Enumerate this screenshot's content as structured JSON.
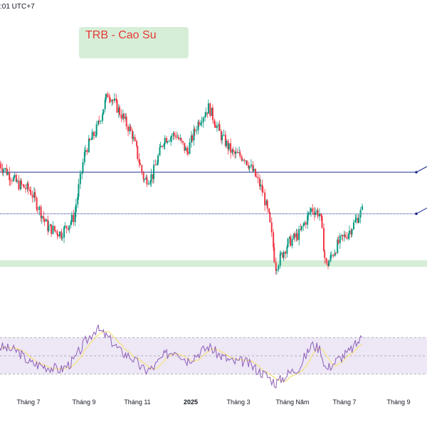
{
  "header": {
    "timestamp": ":01 UTC+7"
  },
  "title_badge": {
    "text": "TRB - Cao Su",
    "bg": "#d6eed8",
    "text_color": "#e53935"
  },
  "colors": {
    "up": "#089981",
    "down": "#f23645",
    "level_line": "#1e2d8f",
    "support_zone": "#d6eed8",
    "rsi_line": "#8e5fb8",
    "rsi_ma": "#f5e27a",
    "rsi_band": "#ede7f6"
  },
  "chart_data": [
    {
      "type": "candlestick",
      "title": "TRB - Cao Su",
      "x_ticks": [
        "Tháng 7",
        "Tháng 9",
        "Tháng 11",
        "2025",
        "Tháng 3",
        "Tháng Năm",
        "Tháng 7",
        "Tháng 9"
      ],
      "x_ticks_bold": [
        "2025"
      ],
      "grid": false,
      "close_series": [
        {
          "x": "2024-05-20",
          "close": 0.52
        },
        {
          "x": "2024-06-10",
          "close": 0.4
        },
        {
          "x": "2024-06-25",
          "close": 0.36
        },
        {
          "x": "2024-07-15",
          "close": 0.14
        },
        {
          "x": "2024-07-31",
          "close": 0.1
        },
        {
          "x": "2024-08-15",
          "close": 0.2
        },
        {
          "x": "2024-08-28",
          "close": 0.6
        },
        {
          "x": "2024-09-10",
          "close": 0.72
        },
        {
          "x": "2024-09-24",
          "close": 0.95
        },
        {
          "x": "2024-10-08",
          "close": 0.83
        },
        {
          "x": "2024-10-22",
          "close": 0.7
        },
        {
          "x": "2024-11-05",
          "close": 0.42
        },
        {
          "x": "2024-11-15",
          "close": 0.45
        },
        {
          "x": "2024-11-28",
          "close": 0.67
        },
        {
          "x": "2024-12-12",
          "close": 0.7
        },
        {
          "x": "2024-12-25",
          "close": 0.59
        },
        {
          "x": "2025-01-08",
          "close": 0.78
        },
        {
          "x": "2025-01-20",
          "close": 0.86
        },
        {
          "x": "2025-02-03",
          "close": 0.69
        },
        {
          "x": "2025-02-17",
          "close": 0.58
        },
        {
          "x": "2025-03-03",
          "close": 0.56
        },
        {
          "x": "2025-03-17",
          "close": 0.43
        },
        {
          "x": "2025-03-24",
          "close": 0.35
        },
        {
          "x": "2025-04-01",
          "close": 0.18
        },
        {
          "x": "2025-04-08",
          "close": -0.1
        },
        {
          "x": "2025-04-22",
          "close": 0.04
        },
        {
          "x": "2025-05-06",
          "close": 0.1
        },
        {
          "x": "2025-05-20",
          "close": 0.25
        },
        {
          "x": "2025-05-30",
          "close": 0.22
        },
        {
          "x": "2025-06-06",
          "close": -0.1
        },
        {
          "x": "2025-06-20",
          "close": 0.04
        },
        {
          "x": "2025-07-04",
          "close": 0.12
        },
        {
          "x": "2025-07-18",
          "close": 0.24
        }
      ],
      "horizontal_levels": [
        0.47,
        0.22
      ],
      "support_zone": [
        -0.06,
        -0.1
      ],
      "rsi": {
        "series": [
          {
            "x": "2024-05-20",
            "value": 60
          },
          {
            "x": "2024-06-10",
            "value": 55
          },
          {
            "x": "2024-06-25",
            "value": 42
          },
          {
            "x": "2024-07-15",
            "value": 38
          },
          {
            "x": "2024-07-31",
            "value": 35
          },
          {
            "x": "2024-08-15",
            "value": 45
          },
          {
            "x": "2024-08-28",
            "value": 65
          },
          {
            "x": "2024-09-10",
            "value": 80
          },
          {
            "x": "2024-09-24",
            "value": 70
          },
          {
            "x": "2024-10-08",
            "value": 55
          },
          {
            "x": "2024-10-22",
            "value": 48
          },
          {
            "x": "2024-11-05",
            "value": 34
          },
          {
            "x": "2024-11-15",
            "value": 36
          },
          {
            "x": "2024-11-28",
            "value": 50
          },
          {
            "x": "2024-12-12",
            "value": 57
          },
          {
            "x": "2024-12-25",
            "value": 45
          },
          {
            "x": "2025-01-08",
            "value": 53
          },
          {
            "x": "2025-01-20",
            "value": 60
          },
          {
            "x": "2025-02-03",
            "value": 50
          },
          {
            "x": "2025-02-17",
            "value": 43
          },
          {
            "x": "2025-03-03",
            "value": 44
          },
          {
            "x": "2025-03-17",
            "value": 35
          },
          {
            "x": "2025-03-24",
            "value": 31
          },
          {
            "x": "2025-04-01",
            "value": 26
          },
          {
            "x": "2025-04-08",
            "value": 20
          },
          {
            "x": "2025-04-22",
            "value": 30
          },
          {
            "x": "2025-05-06",
            "value": 38
          },
          {
            "x": "2025-05-20",
            "value": 62
          },
          {
            "x": "2025-05-30",
            "value": 58
          },
          {
            "x": "2025-06-06",
            "value": 35
          },
          {
            "x": "2025-06-20",
            "value": 46
          },
          {
            "x": "2025-07-04",
            "value": 55
          },
          {
            "x": "2025-07-18",
            "value": 70
          }
        ],
        "band": [
          30,
          70
        ],
        "mid": 50
      }
    }
  ]
}
